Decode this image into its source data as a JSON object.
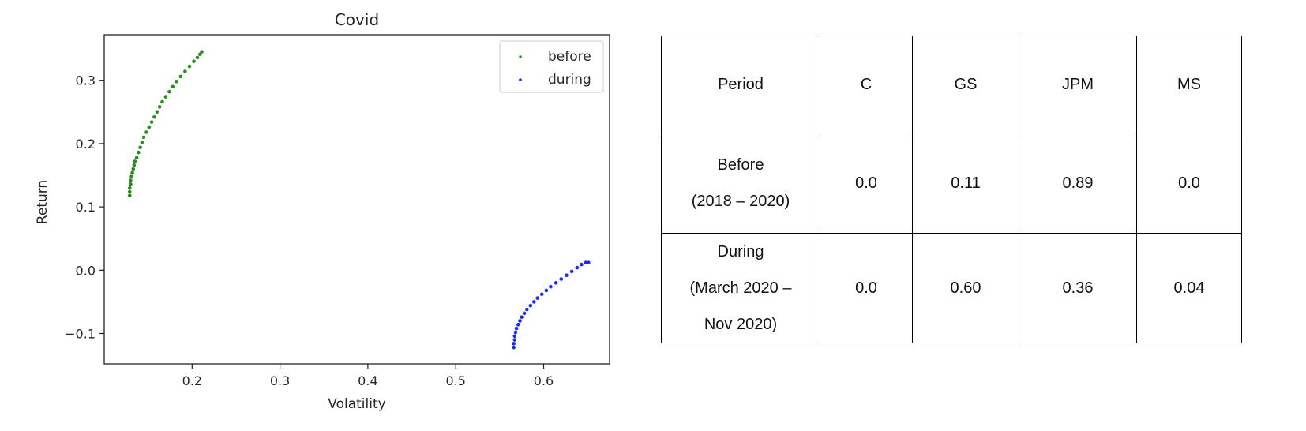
{
  "chart_data": {
    "type": "scatter",
    "title": "Covid",
    "xlabel": "Volatility",
    "ylabel": "Return",
    "xlim": [
      0.1,
      0.675
    ],
    "ylim": [
      -0.148,
      0.372
    ],
    "xticks": [
      0.2,
      0.3,
      0.4,
      0.5,
      0.6
    ],
    "xtick_labels": [
      "0.2",
      "0.3",
      "0.4",
      "0.5",
      "0.6"
    ],
    "yticks": [
      -0.1,
      0.0,
      0.1,
      0.2,
      0.3
    ],
    "ytick_labels": [
      "−0.1",
      "0.0",
      "0.1",
      "0.2",
      "0.3"
    ],
    "legend_position": "top-right",
    "grid": false,
    "series": [
      {
        "name": "before",
        "color": "#2e8b22",
        "points": [
          [
            0.129,
            0.118
          ],
          [
            0.129,
            0.124
          ],
          [
            0.129,
            0.13
          ],
          [
            0.13,
            0.136
          ],
          [
            0.13,
            0.142
          ],
          [
            0.131,
            0.148
          ],
          [
            0.132,
            0.154
          ],
          [
            0.133,
            0.16
          ],
          [
            0.134,
            0.166
          ],
          [
            0.135,
            0.172
          ],
          [
            0.137,
            0.178
          ],
          [
            0.139,
            0.186
          ],
          [
            0.141,
            0.194
          ],
          [
            0.143,
            0.202
          ],
          [
            0.145,
            0.21
          ],
          [
            0.148,
            0.218
          ],
          [
            0.151,
            0.226
          ],
          [
            0.154,
            0.234
          ],
          [
            0.157,
            0.242
          ],
          [
            0.16,
            0.25
          ],
          [
            0.163,
            0.258
          ],
          [
            0.166,
            0.266
          ],
          [
            0.17,
            0.274
          ],
          [
            0.174,
            0.282
          ],
          [
            0.178,
            0.29
          ],
          [
            0.182,
            0.298
          ],
          [
            0.187,
            0.306
          ],
          [
            0.192,
            0.314
          ],
          [
            0.197,
            0.322
          ],
          [
            0.202,
            0.33
          ],
          [
            0.206,
            0.336
          ],
          [
            0.209,
            0.341
          ],
          [
            0.211,
            0.345
          ]
        ]
      },
      {
        "name": "during",
        "color": "#1a2cf0",
        "points": [
          [
            0.566,
            -0.122
          ],
          [
            0.566,
            -0.116
          ],
          [
            0.567,
            -0.11
          ],
          [
            0.567,
            -0.104
          ],
          [
            0.568,
            -0.098
          ],
          [
            0.569,
            -0.092
          ],
          [
            0.571,
            -0.086
          ],
          [
            0.573,
            -0.08
          ],
          [
            0.575,
            -0.074
          ],
          [
            0.578,
            -0.068
          ],
          [
            0.581,
            -0.062
          ],
          [
            0.585,
            -0.056
          ],
          [
            0.589,
            -0.05
          ],
          [
            0.593,
            -0.044
          ],
          [
            0.598,
            -0.038
          ],
          [
            0.603,
            -0.032
          ],
          [
            0.608,
            -0.026
          ],
          [
            0.614,
            -0.02
          ],
          [
            0.62,
            -0.014
          ],
          [
            0.626,
            -0.008
          ],
          [
            0.632,
            -0.002
          ],
          [
            0.638,
            0.004
          ],
          [
            0.643,
            0.009
          ],
          [
            0.648,
            0.012
          ],
          [
            0.651,
            0.012
          ]
        ]
      }
    ]
  },
  "table": {
    "headers": [
      "Period",
      "C",
      "GS",
      "JPM",
      "MS"
    ],
    "rows": [
      {
        "period_lines": [
          "Before",
          "(2018 – 2020)"
        ],
        "values": [
          "0.0",
          "0.11",
          "0.89",
          "0.0"
        ]
      },
      {
        "period_lines": [
          "During",
          "(March 2020 –",
          "Nov 2020)"
        ],
        "values": [
          "0.0",
          "0.60",
          "0.36",
          "0.04"
        ]
      }
    ]
  }
}
